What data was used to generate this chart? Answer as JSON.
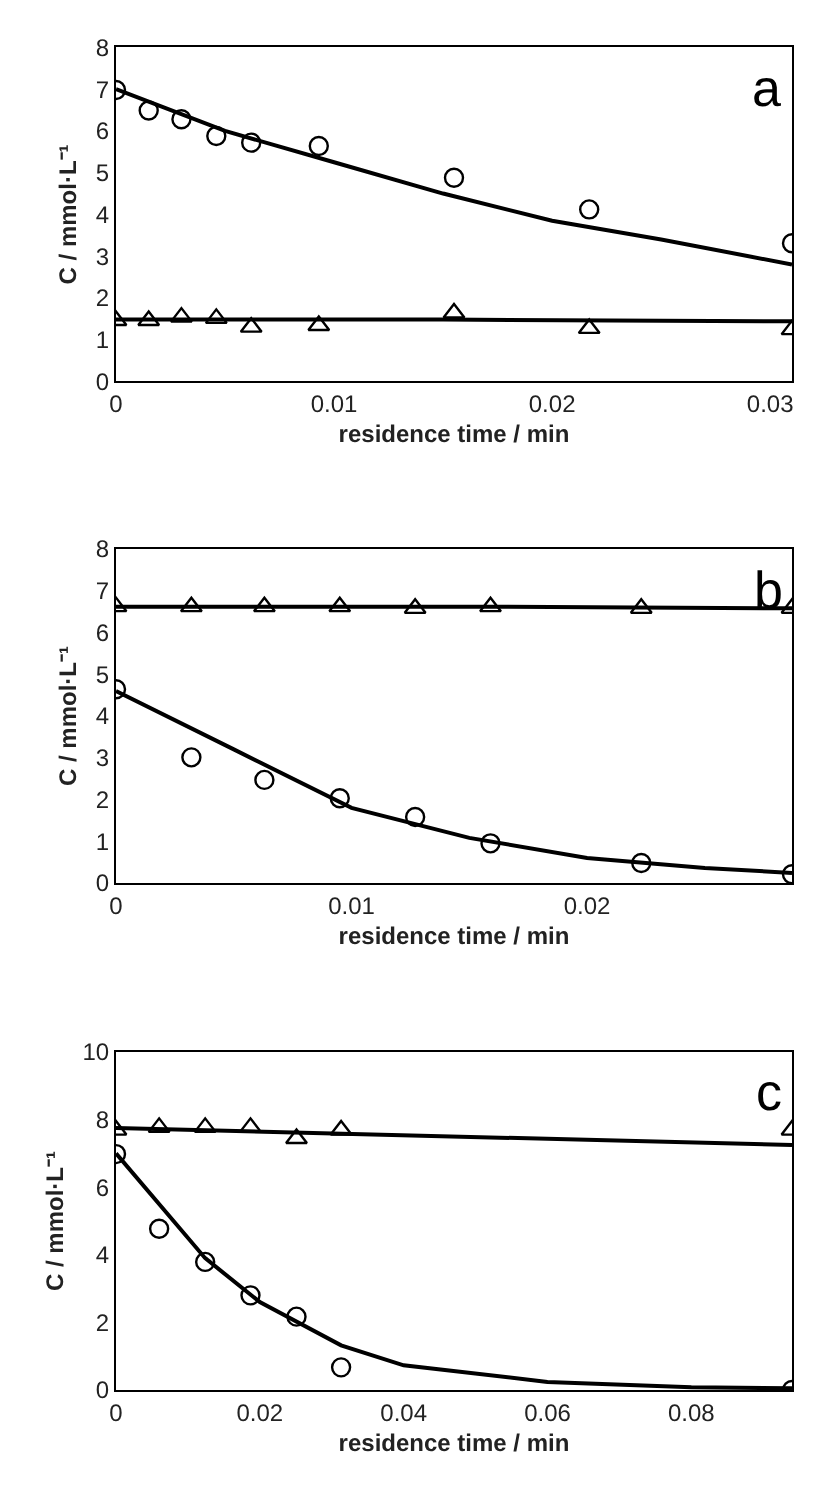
{
  "chart_data": [
    {
      "type": "scatter",
      "xlabel": "residence time / min",
      "ylabel": "C / mmol·L⁻¹",
      "annotations": [
        "a"
      ],
      "xlim": [
        0,
        0.031
      ],
      "xticks": [
        0,
        0.01,
        0.02,
        0.03
      ],
      "ylim": [
        0,
        8
      ],
      "yticks": [
        0,
        1,
        2,
        3,
        4,
        5,
        6,
        7,
        8
      ],
      "series": [
        {
          "marker": "circle",
          "color": "#000000",
          "x": [
            0,
            0.0015,
            0.003,
            0.0046,
            0.0062,
            0.0093,
            0.0155,
            0.0217,
            0.031
          ],
          "values": [
            6.98,
            6.49,
            6.28,
            5.88,
            5.72,
            5.64,
            4.88,
            4.12,
            3.31
          ]
        },
        {
          "marker": "triangle",
          "color": "#000000",
          "x": [
            0,
            0.0015,
            0.003,
            0.0046,
            0.0062,
            0.0093,
            0.0155,
            0.0217,
            0.031
          ],
          "values": [
            1.46,
            1.46,
            1.54,
            1.51,
            1.3,
            1.34,
            1.64,
            1.27,
            1.24
          ]
        },
        {
          "type": "line",
          "marker": "none",
          "color": "#000000",
          "x": [
            0,
            0.005,
            0.01,
            0.015,
            0.02,
            0.025,
            0.031
          ],
          "values": [
            7.0,
            6.0,
            5.25,
            4.5,
            3.85,
            3.4,
            2.8
          ]
        },
        {
          "type": "line",
          "marker": "none",
          "color": "#000000",
          "x": [
            0,
            0.015,
            0.031
          ],
          "values": [
            1.48,
            1.48,
            1.44
          ]
        }
      ]
    },
    {
      "type": "scatter",
      "xlabel": "residence time / min",
      "ylabel": "C / mmol·L⁻¹",
      "annotations": [
        "b"
      ],
      "xlim": [
        0,
        0.0287
      ],
      "xticks": [
        0,
        0.01,
        0.02
      ],
      "ylim": [
        0,
        8
      ],
      "yticks": [
        0,
        1,
        2,
        3,
        4,
        5,
        6,
        7,
        8
      ],
      "series": [
        {
          "marker": "circle",
          "color": "#000000",
          "x": [
            0,
            0.0032,
            0.0063,
            0.0095,
            0.0127,
            0.0159,
            0.0223,
            0.0287
          ],
          "values": [
            4.64,
            3.01,
            2.47,
            2.03,
            1.58,
            0.95,
            0.48,
            0.21
          ]
        },
        {
          "marker": "triangle",
          "color": "#000000",
          "x": [
            0,
            0.0032,
            0.0063,
            0.0095,
            0.0127,
            0.0159,
            0.0223,
            0.0287
          ],
          "values": [
            6.62,
            6.62,
            6.62,
            6.62,
            6.58,
            6.62,
            6.58,
            6.58
          ]
        },
        {
          "type": "line",
          "marker": "none",
          "color": "#000000",
          "x": [
            0,
            0.005,
            0.01,
            0.015,
            0.02,
            0.025,
            0.0287
          ],
          "values": [
            4.6,
            3.2,
            1.8,
            1.08,
            0.6,
            0.36,
            0.24
          ]
        },
        {
          "type": "line",
          "marker": "none",
          "color": "#000000",
          "x": [
            0,
            0.016,
            0.0287
          ],
          "values": [
            6.62,
            6.62,
            6.58
          ]
        }
      ]
    },
    {
      "type": "scatter",
      "xlabel": "residence time / min",
      "ylabel": "C / mmol·L⁻¹",
      "annotations": [
        "c"
      ],
      "xlim": [
        0,
        0.094
      ],
      "xticks": [
        0,
        0.02,
        0.04,
        0.06,
        0.08
      ],
      "ylim": [
        0,
        10
      ],
      "yticks": [
        0,
        2,
        4,
        6,
        8,
        10
      ],
      "series": [
        {
          "marker": "circle",
          "color": "#000000",
          "x": [
            0,
            0.006,
            0.0124,
            0.0187,
            0.0251,
            0.0313,
            0.094
          ],
          "values": [
            6.98,
            4.77,
            3.79,
            2.8,
            2.17,
            0.67,
            0.0
          ]
        },
        {
          "marker": "triangle",
          "color": "#000000",
          "x": [
            0,
            0.006,
            0.0124,
            0.0187,
            0.0251,
            0.0313,
            0.094
          ],
          "values": [
            7.69,
            7.77,
            7.77,
            7.77,
            7.44,
            7.69,
            7.69
          ]
        },
        {
          "type": "line",
          "marker": "none",
          "color": "#000000",
          "x": [
            0,
            0.0124,
            0.02,
            0.0313,
            0.04,
            0.06,
            0.08,
            0.094
          ],
          "values": [
            7.0,
            3.9,
            2.6,
            1.32,
            0.73,
            0.24,
            0.08,
            0.05
          ]
        },
        {
          "type": "line",
          "marker": "none",
          "color": "#000000",
          "x": [
            0,
            0.094
          ],
          "values": [
            7.75,
            7.25
          ]
        }
      ]
    }
  ]
}
